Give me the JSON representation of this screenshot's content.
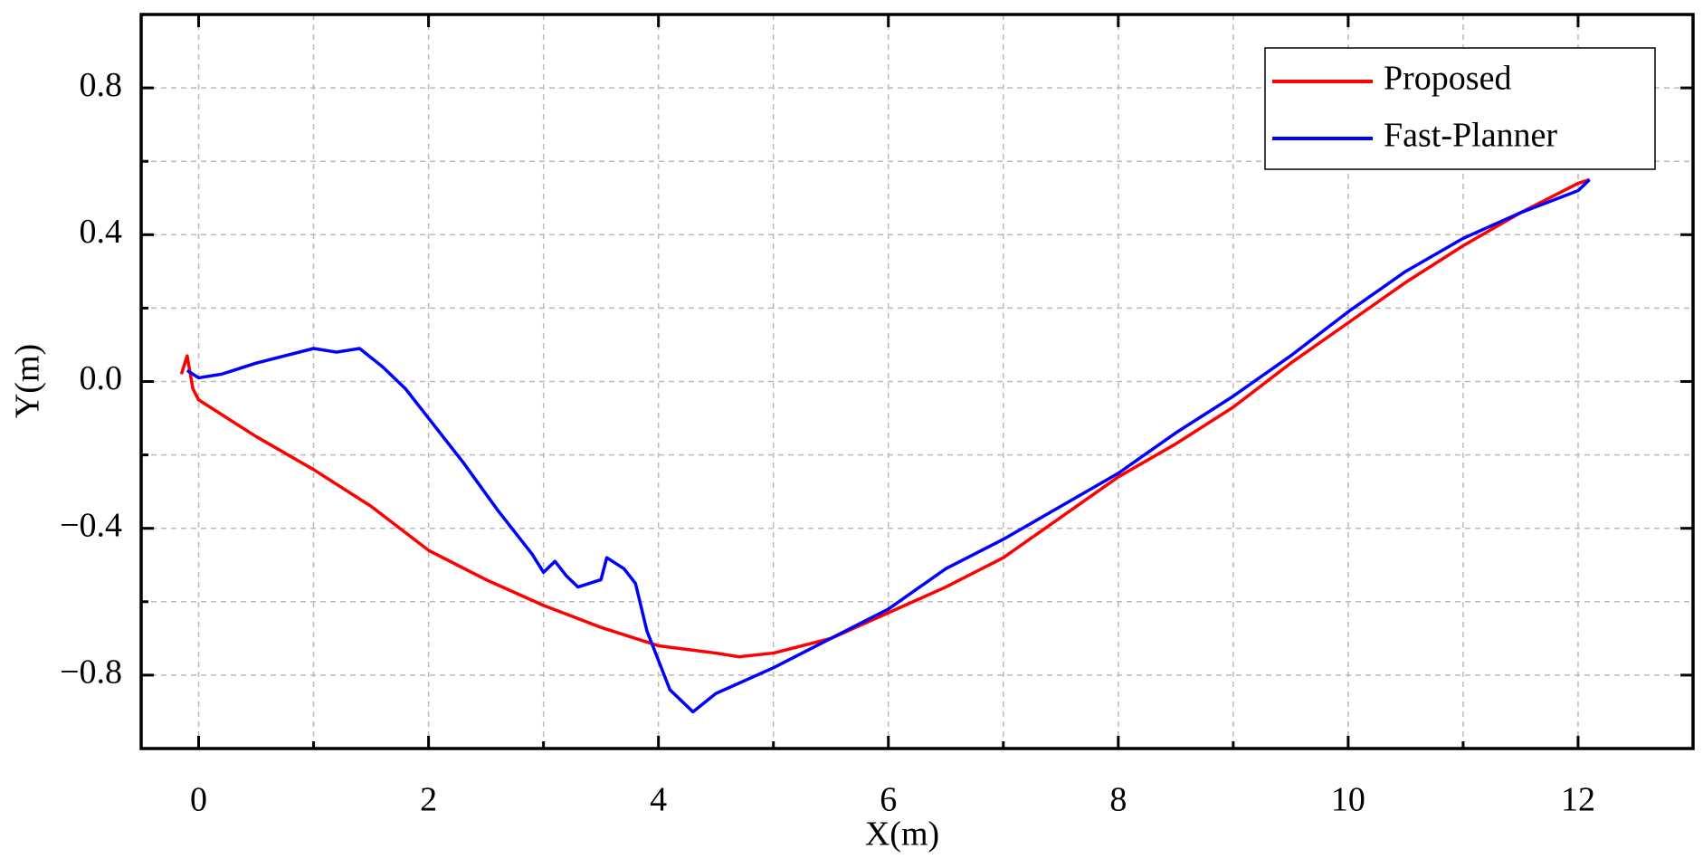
{
  "chart_data": {
    "type": "line",
    "xlabel": "X(m)",
    "ylabel": "Y(m)",
    "xlim": [
      -0.5,
      13
    ],
    "ylim": [
      -1,
      1
    ],
    "xticks": [
      0,
      2,
      4,
      6,
      8,
      10,
      12
    ],
    "xminorticks": [
      1,
      3,
      5,
      7,
      9,
      11
    ],
    "yticks": [
      {
        "value": -0.8,
        "label": "−0.8"
      },
      {
        "value": -0.4,
        "label": "−0.4"
      },
      {
        "value": 0,
        "label": "0.0"
      },
      0.4,
      0.8
    ],
    "yminorticks": [
      -0.6,
      -0.2,
      0.2,
      0.6
    ],
    "grid": true,
    "legend": "upper right",
    "series": [
      {
        "name": "Proposed",
        "color": "#ff0000",
        "x": [
          -0.15,
          -0.1,
          -0.05,
          0,
          0.5,
          1,
          1.5,
          2,
          2.5,
          3,
          3.5,
          4,
          4.5,
          4.7,
          5,
          5.5,
          6,
          6.5,
          7,
          7.5,
          8,
          8.5,
          9,
          9.5,
          10,
          10.5,
          11,
          11.5,
          12,
          12.1
        ],
        "values": [
          0.02,
          0.07,
          -0.02,
          -0.05,
          -0.15,
          -0.24,
          -0.34,
          -0.46,
          -0.54,
          -0.61,
          -0.67,
          -0.72,
          -0.74,
          -0.75,
          -0.74,
          -0.7,
          -0.63,
          -0.56,
          -0.48,
          -0.37,
          -0.26,
          -0.17,
          -0.07,
          0.05,
          0.16,
          0.27,
          0.37,
          0.46,
          0.54,
          0.55
        ]
      },
      {
        "name": "Fast-Planner",
        "color": "#0000ff",
        "x": [
          -0.1,
          0,
          0.2,
          0.5,
          1,
          1.2,
          1.4,
          1.6,
          1.8,
          2,
          2.3,
          2.6,
          2.9,
          3,
          3.1,
          3.2,
          3.3,
          3.5,
          3.55,
          3.7,
          3.8,
          3.9,
          4.1,
          4.3,
          4.5,
          5,
          5.5,
          6,
          6.5,
          7,
          7.5,
          8,
          8.5,
          9,
          9.5,
          10,
          10.5,
          11,
          11.5,
          12,
          12.1
        ],
        "values": [
          0.03,
          0.01,
          0.02,
          0.05,
          0.09,
          0.08,
          0.09,
          0.04,
          -0.02,
          -0.1,
          -0.22,
          -0.35,
          -0.47,
          -0.52,
          -0.49,
          -0.53,
          -0.56,
          -0.54,
          -0.48,
          -0.51,
          -0.55,
          -0.68,
          -0.84,
          -0.9,
          -0.85,
          -0.78,
          -0.7,
          -0.62,
          -0.51,
          -0.43,
          -0.34,
          -0.25,
          -0.14,
          -0.04,
          0.07,
          0.19,
          0.3,
          0.39,
          0.46,
          0.52,
          0.55
        ]
      }
    ]
  }
}
